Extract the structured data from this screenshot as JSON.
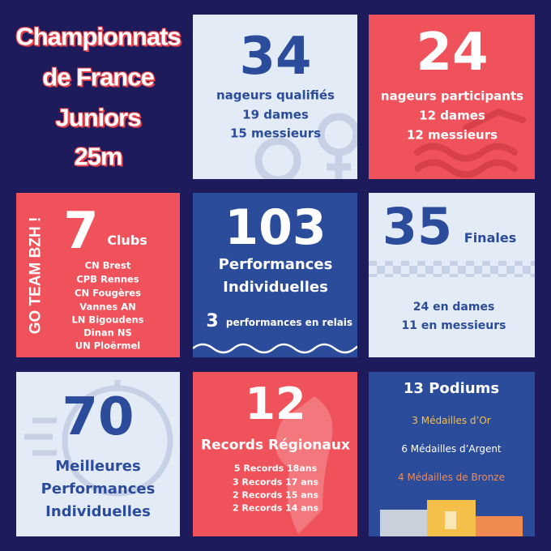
{
  "title": {
    "lines": [
      "Championnats",
      "de France",
      "Juniors",
      "25m"
    ]
  },
  "qualified": {
    "number": "34",
    "label": "nageurs qualifiés",
    "lines": [
      "19 dames",
      "15 messieurs"
    ]
  },
  "participants": {
    "number": "24",
    "label": "nageurs participants",
    "lines": [
      "12 dames",
      "12 messieurs"
    ]
  },
  "clubs": {
    "slogan": "GO TEAM BZH !",
    "number": "7",
    "label": "Clubs",
    "list": [
      "CN Brest",
      "CPB Rennes",
      "CN Fougères",
      "Vannes AN",
      "LN Bigoudens",
      "Dinan NS",
      "UN Ploërmel"
    ]
  },
  "performances": {
    "number": "103",
    "lines": [
      "Performances",
      "Individuelles"
    ],
    "relay_number": "3",
    "relay_label": "performances en relais"
  },
  "finals": {
    "number": "35",
    "label": "Finales",
    "lines": [
      "24 en dames",
      "11 en messieurs"
    ]
  },
  "best": {
    "number": "70",
    "lines": [
      "Meilleures",
      "Performances",
      "Individuelles"
    ]
  },
  "records": {
    "number": "12",
    "label": "Records Régionaux",
    "list": [
      "5 Records 18ans",
      "3 Records 17 ans",
      "2 Records 15 ans",
      "2 Records 14 ans"
    ]
  },
  "podiums": {
    "title": "13 Podiums",
    "medals": [
      "3 Médailles d’Or",
      "6 Médailles d’Argent",
      "4 Médailles de Bronze"
    ]
  }
}
